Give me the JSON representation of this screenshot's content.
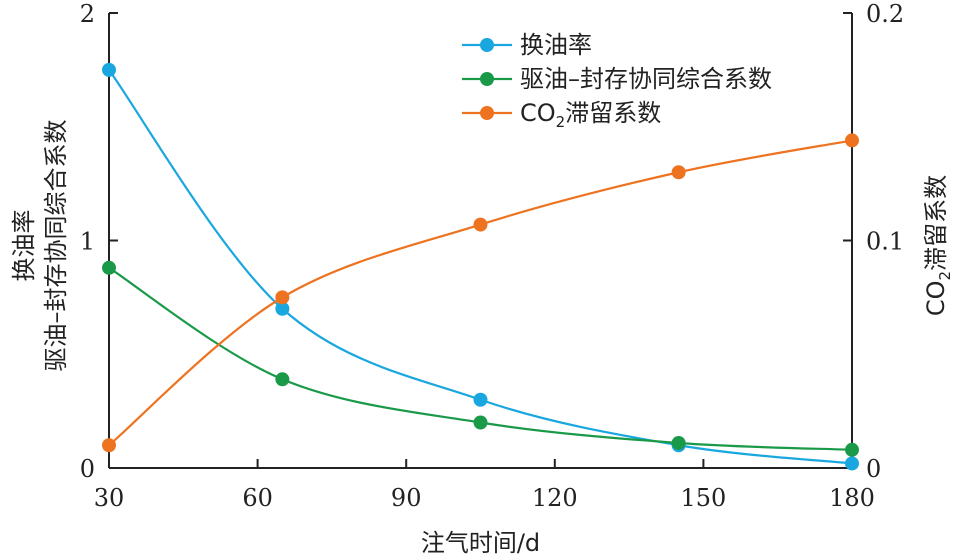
{
  "chart_data": {
    "type": "line",
    "xlabel": "注气时间/d",
    "ylabel_left": [
      "换油率",
      "驱油–封存协同综合系数"
    ],
    "ylabel_right": {
      "prefix": "CO",
      "sub": "2",
      "suffix": "滞留系数"
    },
    "xlim": [
      30,
      180
    ],
    "ylim_left": [
      0,
      2
    ],
    "ylim_right": [
      0,
      0.2
    ],
    "xticks": [
      "30",
      "60",
      "90",
      "120",
      "150",
      "180"
    ],
    "xtick_values": [
      30,
      60,
      90,
      120,
      150,
      180
    ],
    "yticks_left": [
      "0",
      "1",
      "2"
    ],
    "ytick_values_left": [
      0,
      1,
      2
    ],
    "yticks_right": [
      "0",
      "0.1",
      "0.2"
    ],
    "ytick_values_right": [
      0,
      0.1,
      0.2
    ],
    "grid": false,
    "legend_position": "top-center",
    "series": [
      {
        "name": "换油率",
        "axis": "left",
        "color": "#1aa7e0",
        "x": [
          30,
          65,
          105,
          145,
          180
        ],
        "values": [
          1.75,
          0.7,
          0.3,
          0.1,
          0.02
        ]
      },
      {
        "name": "驱油–封存协同综合系数",
        "axis": "left",
        "color": "#1a9a48",
        "x": [
          30,
          65,
          105,
          145,
          180
        ],
        "values": [
          0.88,
          0.39,
          0.2,
          0.11,
          0.08
        ]
      },
      {
        "name": {
          "prefix": "CO",
          "sub": "2",
          "suffix": "滞留系数"
        },
        "axis": "right",
        "color": "#ee7320",
        "x": [
          30,
          65,
          105,
          145,
          180
        ],
        "values": [
          0.01,
          0.075,
          0.107,
          0.13,
          0.144
        ]
      }
    ]
  }
}
